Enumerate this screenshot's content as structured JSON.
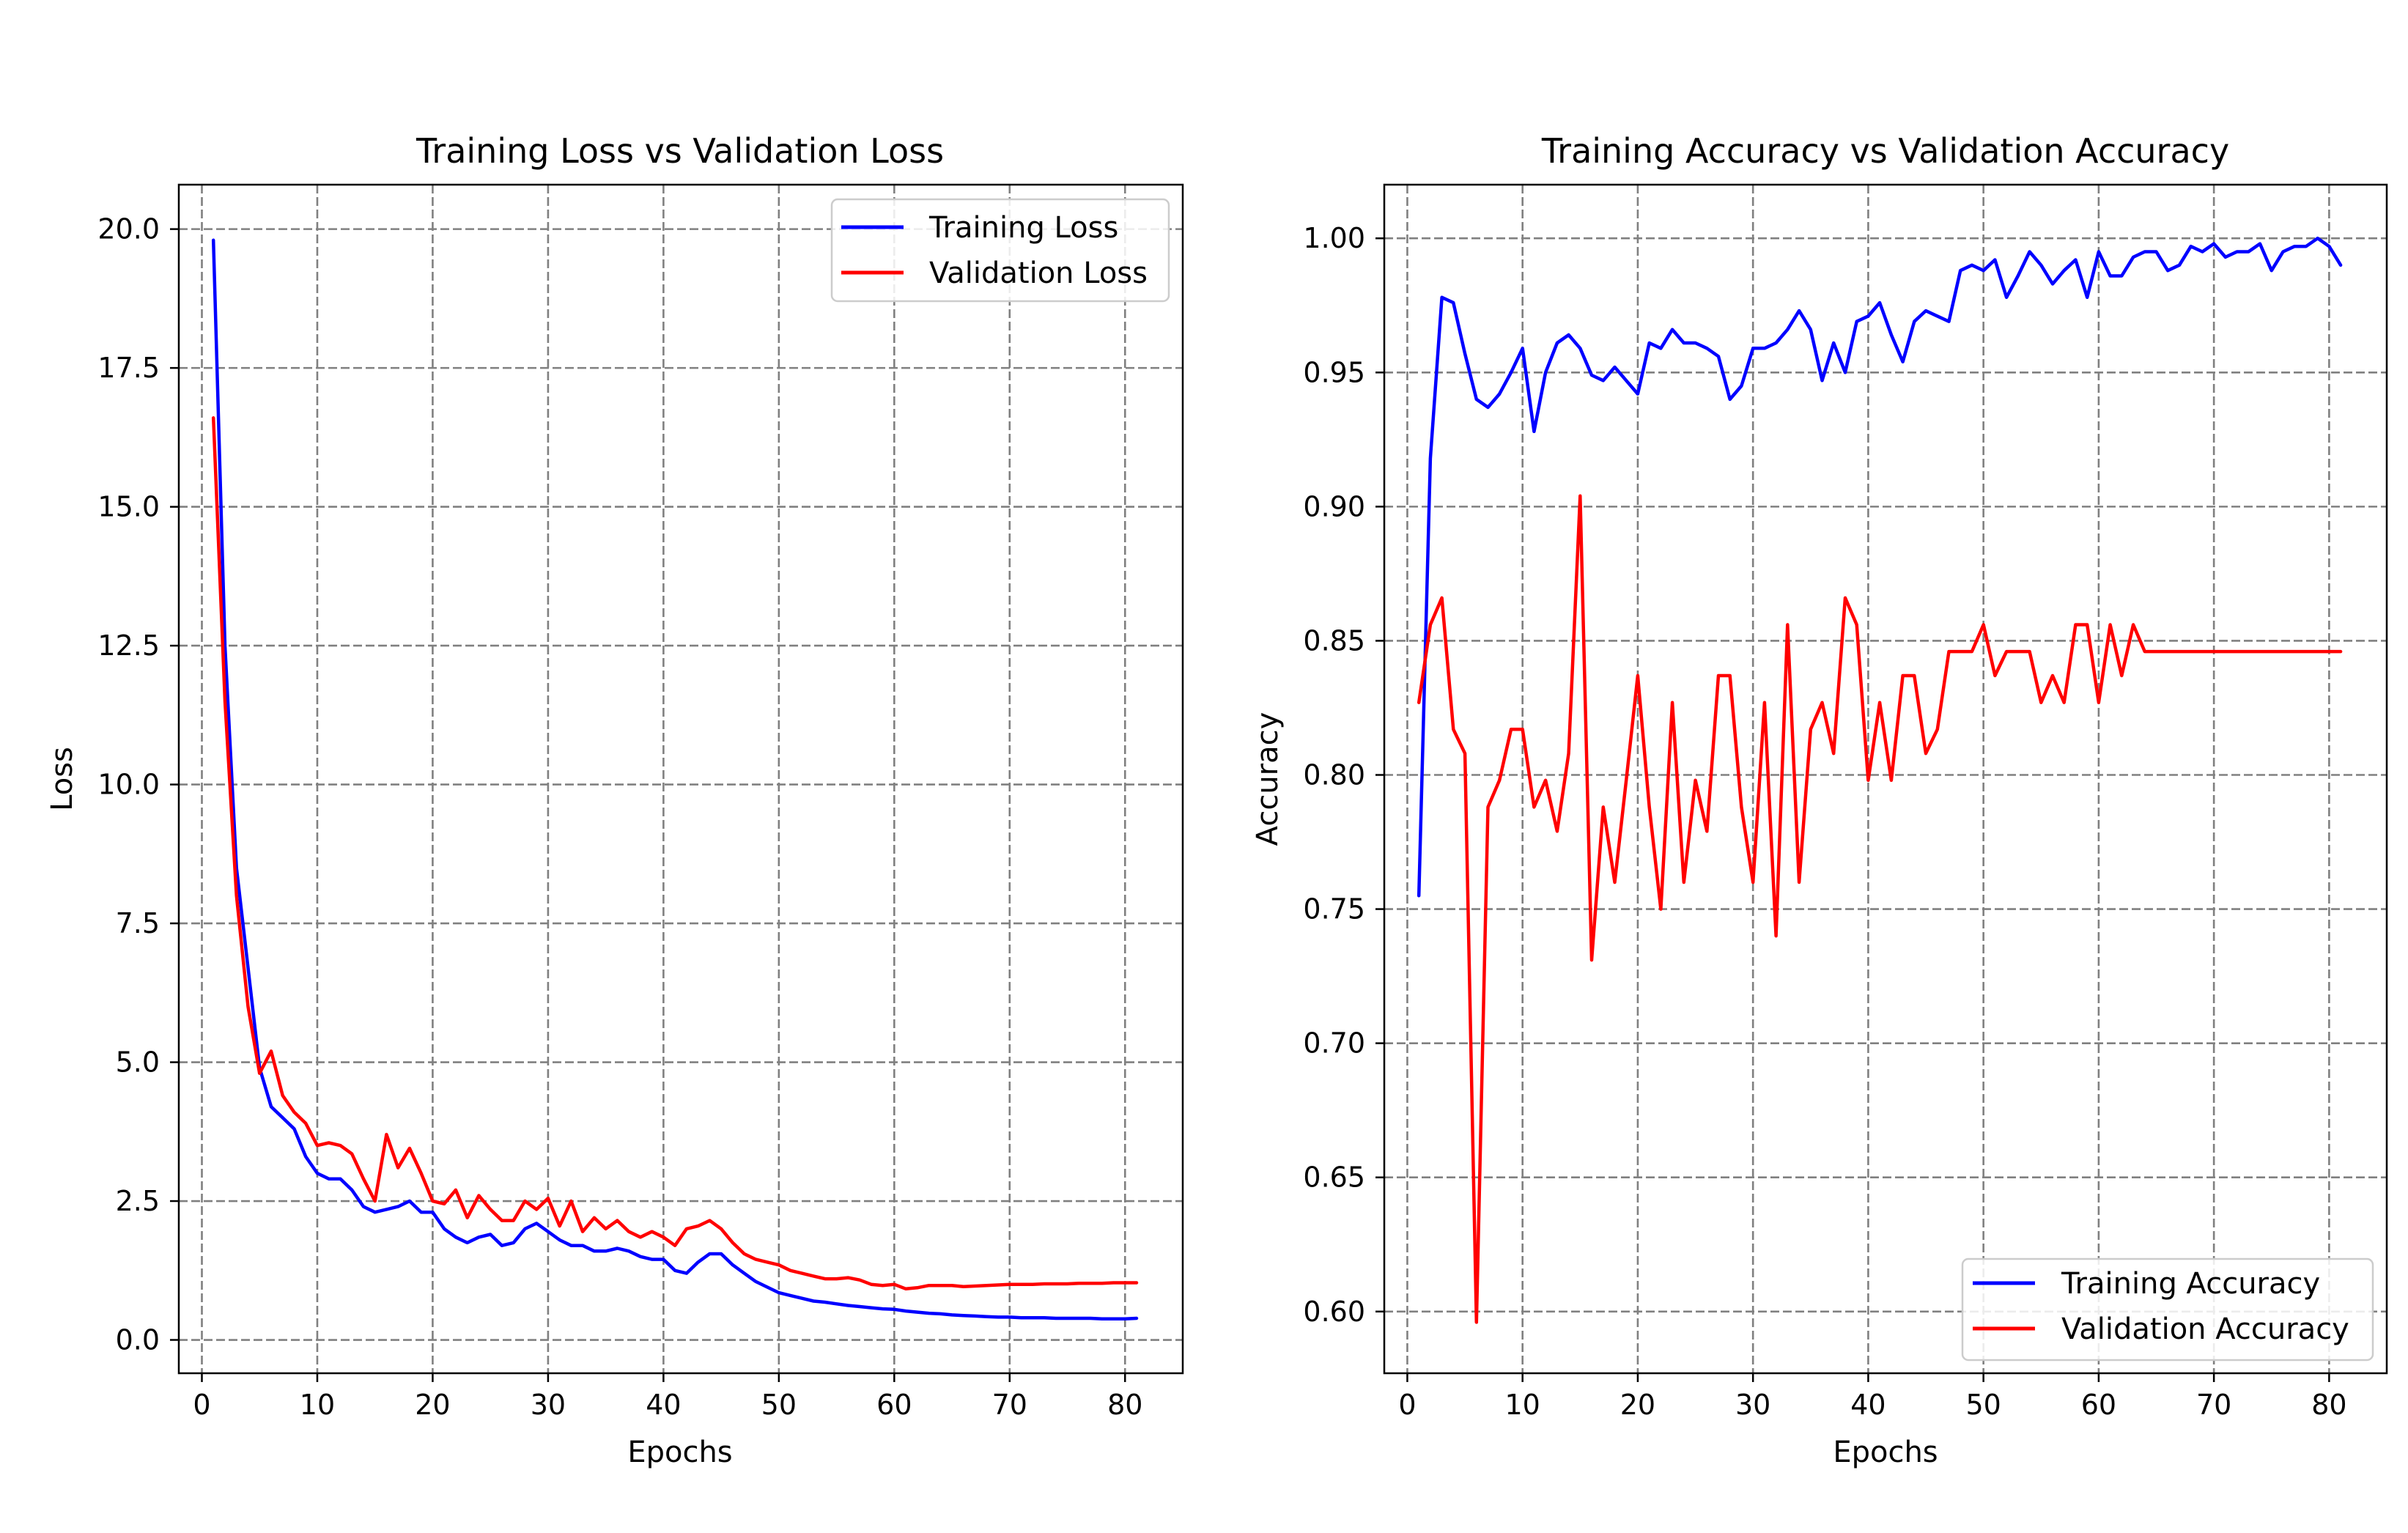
{
  "chart_data": [
    {
      "type": "line",
      "title": "Training Loss vs Validation Loss",
      "xlabel": "Epochs",
      "ylabel": "Loss",
      "xlim": [
        -2,
        85
      ],
      "ylim": [
        -0.6,
        20.8
      ],
      "xticks": [
        0,
        10,
        20,
        30,
        40,
        50,
        60,
        70,
        80
      ],
      "yticks": [
        0.0,
        2.5,
        5.0,
        7.5,
        10.0,
        12.5,
        15.0,
        17.5,
        20.0
      ],
      "ytick_labels": [
        "0.0",
        "2.5",
        "5.0",
        "7.5",
        "10.0",
        "12.5",
        "15.0",
        "17.5",
        "20.0"
      ],
      "grid": true,
      "legend_position": "top-right",
      "x": [
        1,
        2,
        3,
        4,
        5,
        6,
        7,
        8,
        9,
        10,
        11,
        12,
        13,
        14,
        15,
        16,
        17,
        18,
        19,
        20,
        21,
        22,
        23,
        24,
        25,
        26,
        27,
        28,
        29,
        30,
        31,
        32,
        33,
        34,
        35,
        36,
        37,
        38,
        39,
        40,
        41,
        42,
        43,
        44,
        45,
        46,
        47,
        48,
        49,
        50,
        51,
        52,
        53,
        54,
        55,
        56,
        57,
        58,
        59,
        60,
        61,
        62,
        63,
        64,
        65,
        66,
        67,
        68,
        69,
        70,
        71,
        72,
        73,
        74,
        75,
        76,
        77,
        78,
        79,
        80,
        81
      ],
      "series": [
        {
          "name": "Training Loss",
          "color": "#0000ff",
          "values": [
            19.8,
            12.5,
            8.5,
            6.7,
            4.9,
            4.2,
            4.0,
            3.8,
            3.3,
            3.0,
            2.9,
            2.9,
            2.7,
            2.4,
            2.3,
            2.35,
            2.4,
            2.5,
            2.3,
            2.3,
            2.0,
            1.85,
            1.75,
            1.85,
            1.9,
            1.7,
            1.75,
            2.0,
            2.1,
            1.95,
            1.8,
            1.7,
            1.7,
            1.6,
            1.6,
            1.65,
            1.6,
            1.5,
            1.45,
            1.45,
            1.25,
            1.2,
            1.4,
            1.55,
            1.55,
            1.35,
            1.2,
            1.05,
            0.95,
            0.85,
            0.8,
            0.75,
            0.7,
            0.68,
            0.65,
            0.62,
            0.6,
            0.58,
            0.56,
            0.55,
            0.52,
            0.5,
            0.48,
            0.47,
            0.45,
            0.44,
            0.43,
            0.42,
            0.41,
            0.41,
            0.4,
            0.4,
            0.4,
            0.39,
            0.39,
            0.39,
            0.39,
            0.38,
            0.38,
            0.38,
            0.39
          ]
        },
        {
          "name": "Validation Loss",
          "color": "#ff0000",
          "values": [
            16.6,
            11.5,
            8.0,
            6.0,
            4.8,
            5.2,
            4.4,
            4.1,
            3.9,
            3.5,
            3.55,
            3.5,
            3.35,
            2.9,
            2.5,
            3.7,
            3.1,
            3.45,
            3.0,
            2.5,
            2.45,
            2.7,
            2.2,
            2.6,
            2.35,
            2.15,
            2.15,
            2.5,
            2.35,
            2.55,
            2.05,
            2.5,
            1.95,
            2.2,
            2.0,
            2.15,
            1.95,
            1.85,
            1.95,
            1.85,
            1.7,
            2.0,
            2.05,
            2.15,
            2.0,
            1.75,
            1.55,
            1.45,
            1.4,
            1.35,
            1.25,
            1.2,
            1.15,
            1.1,
            1.1,
            1.12,
            1.08,
            1.0,
            0.98,
            1.0,
            0.92,
            0.94,
            0.98,
            0.98,
            0.98,
            0.96,
            0.97,
            0.98,
            0.99,
            1.0,
            1.0,
            1.0,
            1.01,
            1.01,
            1.01,
            1.02,
            1.02,
            1.02,
            1.03,
            1.03,
            1.03
          ]
        }
      ]
    },
    {
      "type": "line",
      "title": "Training Accuracy vs Validation Accuracy",
      "xlabel": "Epochs",
      "ylabel": "Accuracy",
      "xlim": [
        -2,
        85
      ],
      "ylim": [
        0.577,
        1.02
      ],
      "xticks": [
        0,
        10,
        20,
        30,
        40,
        50,
        60,
        70,
        80
      ],
      "yticks": [
        0.6,
        0.65,
        0.7,
        0.75,
        0.8,
        0.85,
        0.9,
        0.95,
        1.0
      ],
      "ytick_labels": [
        "0.60",
        "0.65",
        "0.70",
        "0.75",
        "0.80",
        "0.85",
        "0.90",
        "0.95",
        "1.00"
      ],
      "grid": true,
      "legend_position": "bottom-right",
      "x": [
        1,
        2,
        3,
        4,
        5,
        6,
        7,
        8,
        9,
        10,
        11,
        12,
        13,
        14,
        15,
        16,
        17,
        18,
        19,
        20,
        21,
        22,
        23,
        24,
        25,
        26,
        27,
        28,
        29,
        30,
        31,
        32,
        33,
        34,
        35,
        36,
        37,
        38,
        39,
        40,
        41,
        42,
        43,
        44,
        45,
        46,
        47,
        48,
        49,
        50,
        51,
        52,
        53,
        54,
        55,
        56,
        57,
        58,
        59,
        60,
        61,
        62,
        63,
        64,
        65,
        66,
        67,
        68,
        69,
        70,
        71,
        72,
        73,
        74,
        75,
        76,
        77,
        78,
        79,
        80,
        81
      ],
      "series": [
        {
          "name": "Training Accuracy",
          "color": "#0000ff",
          "values": [
            0.755,
            0.918,
            0.978,
            0.976,
            0.957,
            0.94,
            0.937,
            0.942,
            0.95,
            0.959,
            0.928,
            0.95,
            0.961,
            0.964,
            0.959,
            0.949,
            0.947,
            0.952,
            0.947,
            0.942,
            0.961,
            0.959,
            0.966,
            0.961,
            0.961,
            0.959,
            0.956,
            0.94,
            0.945,
            0.959,
            0.959,
            0.961,
            0.966,
            0.973,
            0.966,
            0.947,
            0.961,
            0.95,
            0.969,
            0.971,
            0.976,
            0.964,
            0.954,
            0.969,
            0.973,
            0.971,
            0.969,
            0.988,
            0.99,
            0.988,
            0.992,
            0.978,
            0.986,
            0.995,
            0.99,
            0.983,
            0.988,
            0.992,
            0.978,
            0.995,
            0.986,
            0.986,
            0.993,
            0.995,
            0.995,
            0.988,
            0.99,
            0.997,
            0.995,
            0.998,
            0.993,
            0.995,
            0.995,
            0.998,
            0.988,
            0.995,
            0.997,
            0.997,
            1.0,
            0.997,
            0.99
          ]
        },
        {
          "name": "Validation Accuracy",
          "color": "#ff0000",
          "values": [
            0.827,
            0.856,
            0.866,
            0.817,
            0.808,
            0.596,
            0.788,
            0.798,
            0.817,
            0.817,
            0.788,
            0.798,
            0.779,
            0.808,
            0.904,
            0.731,
            0.788,
            0.76,
            0.798,
            0.837,
            0.788,
            0.75,
            0.827,
            0.76,
            0.798,
            0.779,
            0.837,
            0.837,
            0.788,
            0.76,
            0.827,
            0.74,
            0.856,
            0.76,
            0.817,
            0.827,
            0.808,
            0.866,
            0.856,
            0.798,
            0.827,
            0.798,
            0.837,
            0.837,
            0.808,
            0.817,
            0.846,
            0.846,
            0.846,
            0.856,
            0.837,
            0.846,
            0.846,
            0.846,
            0.827,
            0.837,
            0.827,
            0.856,
            0.856,
            0.827,
            0.856,
            0.837,
            0.856,
            0.846,
            0.846,
            0.846,
            0.846,
            0.846,
            0.846,
            0.846,
            0.846,
            0.846,
            0.846,
            0.846,
            0.846,
            0.846,
            0.846,
            0.846,
            0.846,
            0.846,
            0.846
          ]
        }
      ]
    }
  ]
}
